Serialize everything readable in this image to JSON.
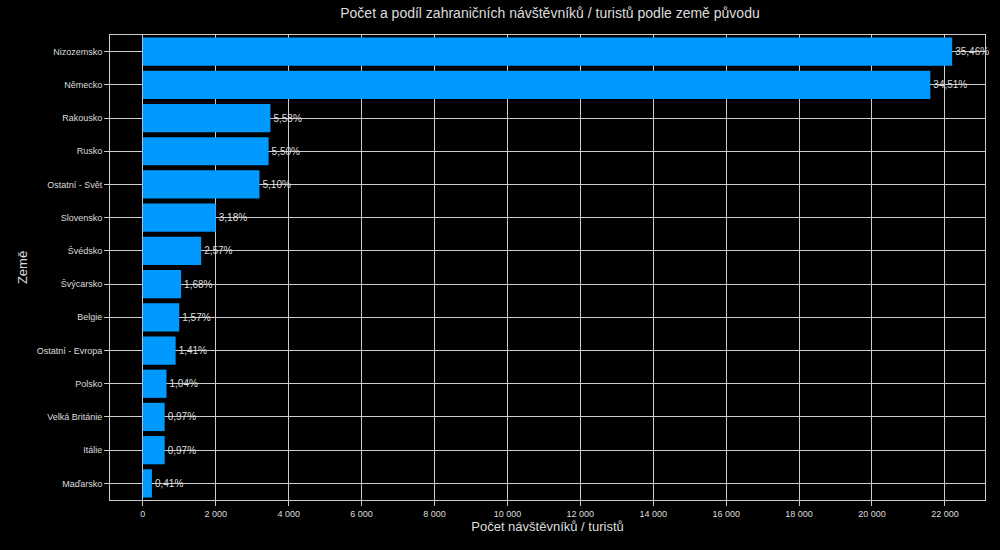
{
  "chart_data": {
    "type": "bar",
    "orientation": "horizontal",
    "title": "Počet a podíl zahraničních návštěvníků / turistů podle země původu",
    "x_label": "Počet návštěvníků / turistů",
    "y_label": "Země",
    "categories": [
      "Nizozemsko",
      "Německo",
      "Rakousko",
      "Rusko",
      "Ostatní - Svět",
      "Slovensko",
      "Švédsko",
      "Švýcarsko",
      "Belgie",
      "Ostatní - Evropa",
      "Polsko",
      "Velká Británie",
      "Itálie",
      "Maďarsko"
    ],
    "values": [
      22200,
      21600,
      3500,
      3450,
      3200,
      2000,
      1600,
      1050,
      1000,
      900,
      650,
      600,
      600,
      250
    ],
    "share_labels": [
      "35,46%",
      "34,51%",
      "5,58%",
      "5,50%",
      "5,10%",
      "3,18%",
      "2,57%",
      "1,68%",
      "1,57%",
      "1,41%",
      "1,04%",
      "0,97%",
      "0,97%",
      "0,41%"
    ],
    "color": "#0099ff",
    "xlim": [
      -900,
      23100
    ],
    "xticks": [
      0,
      {
        "value": 2000,
        "label": "2 000"
      },
      {
        "value": 4000,
        "label": "4 000"
      },
      {
        "value": 6000,
        "label": "6 000"
      },
      {
        "value": 8000,
        "label": "8 000"
      },
      {
        "value": 10000,
        "label": "10 000"
      },
      {
        "value": 12000,
        "label": "12 000"
      },
      {
        "value": 14000,
        "label": "14 000"
      },
      {
        "value": 16000,
        "label": "16 000"
      },
      {
        "value": 18000,
        "label": "18 000"
      },
      {
        "value": 20000,
        "label": "20 000"
      },
      {
        "value": 22000,
        "label": "22 000"
      }
    ],
    "grid": true
  }
}
